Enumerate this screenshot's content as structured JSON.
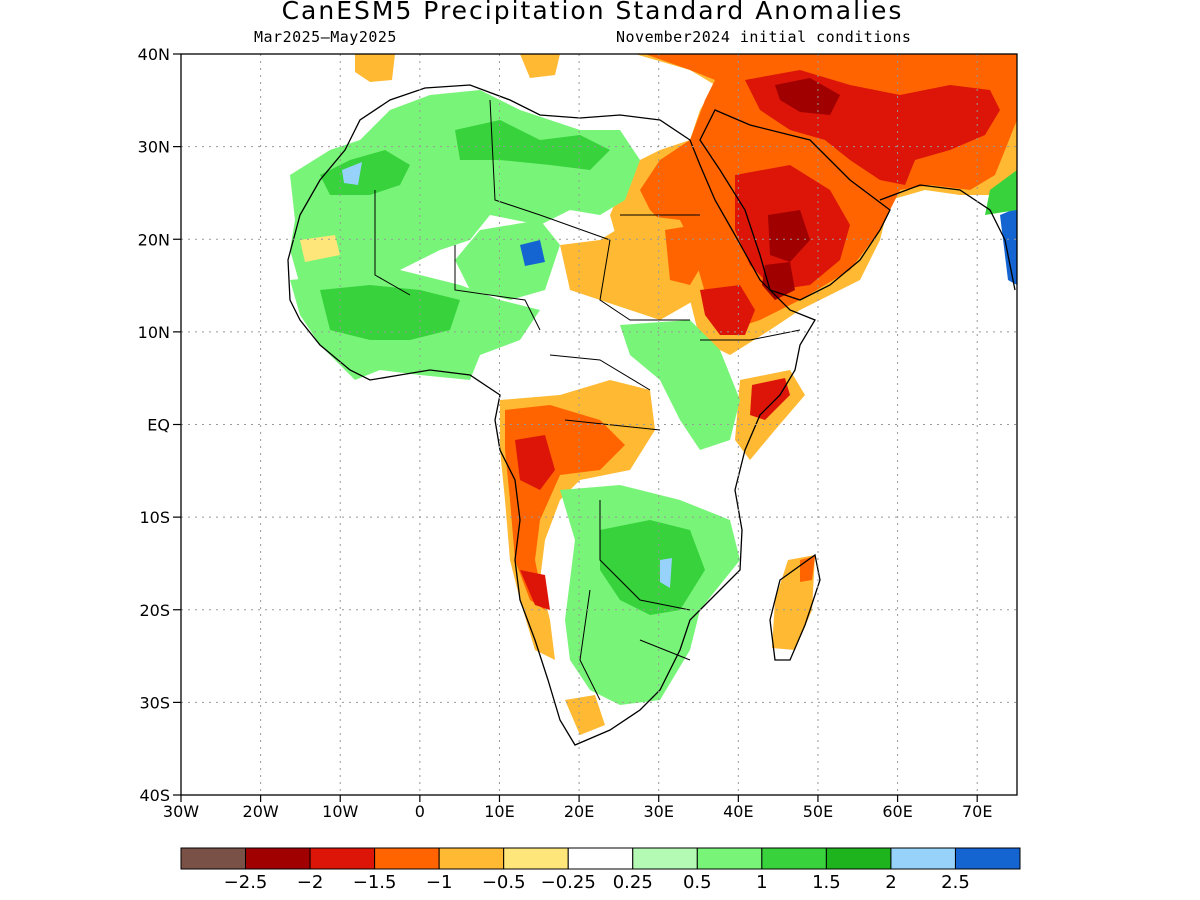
{
  "title": "CanESM5 Precipitation Standard Anomalies",
  "period": "Mar2025–May2025",
  "init": "November2024 initial conditions",
  "map": {
    "lon_range": [
      -30,
      75
    ],
    "lat_range": [
      -40,
      40
    ],
    "lat_ticks": [
      {
        "lat": 40,
        "label": "40N"
      },
      {
        "lat": 30,
        "label": "30N"
      },
      {
        "lat": 20,
        "label": "20N"
      },
      {
        "lat": 10,
        "label": "10N"
      },
      {
        "lat": 0,
        "label": "EQ"
      },
      {
        "lat": -10,
        "label": "10S"
      },
      {
        "lat": -20,
        "label": "20S"
      },
      {
        "lat": -30,
        "label": "30S"
      },
      {
        "lat": -40,
        "label": "40S"
      }
    ],
    "lon_ticks": [
      {
        "lon": -30,
        "label": "30W"
      },
      {
        "lon": -20,
        "label": "20W"
      },
      {
        "lon": -10,
        "label": "10W"
      },
      {
        "lon": 0,
        "label": "0"
      },
      {
        "lon": 10,
        "label": "10E"
      },
      {
        "lon": 20,
        "label": "20E"
      },
      {
        "lon": 30,
        "label": "30E"
      },
      {
        "lon": 40,
        "label": "40E"
      },
      {
        "lon": 50,
        "label": "50E"
      },
      {
        "lon": 60,
        "label": "60E"
      },
      {
        "lon": 70,
        "label": "70E"
      }
    ],
    "gridlines": true
  },
  "colorbar": {
    "colors": [
      "#7a5146",
      "#a00000",
      "#dc1508",
      "#ff6400",
      "#ffb932",
      "#ffe67a",
      "#ffffff",
      "#b4fab4",
      "#78f578",
      "#37d23c",
      "#1eb41e",
      "#96d2fa",
      "#1464d2"
    ],
    "labels": [
      "−2.5",
      "−2",
      "−1.5",
      "−1",
      "−0.5",
      "−0.25",
      "0.25",
      "0.5",
      "1",
      "1.5",
      "2",
      "2.5"
    ]
  }
}
